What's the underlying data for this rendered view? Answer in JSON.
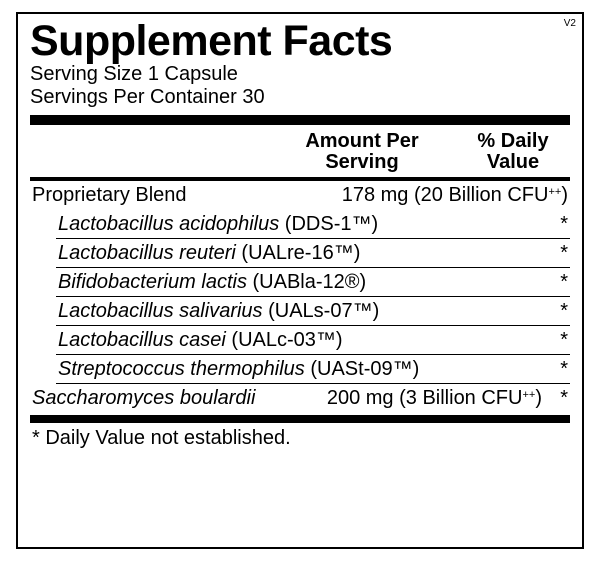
{
  "version": "V2",
  "title": "Supplement Facts",
  "serving_size": "Serving Size 1 Capsule",
  "servings_per_container": "Servings Per Container 30",
  "columns": {
    "amount_l1": "Amount Per",
    "amount_l2": "Serving",
    "dv_l1": "% Daily",
    "dv_l2": "Value"
  },
  "blend": {
    "name": "Proprietary Blend",
    "amount": "178 mg (20 Billion CFU",
    "amount_sup": "++",
    "amount_close": ")"
  },
  "ingredients": [
    {
      "italic": "Lactobacillus acidophilus",
      "tag": " (DDS-1™)",
      "dv": "*"
    },
    {
      "italic": "Lactobacillus reuteri",
      "tag": " (UALre-16™)",
      "dv": "*"
    },
    {
      "italic": "Bifidobacterium lactis",
      "tag": " (UABla-12®)",
      "dv": "*"
    },
    {
      "italic": "Lactobacillus salivarius",
      "tag": " (UALs-07™)",
      "dv": "*"
    },
    {
      "italic": "Lactobacillus casei",
      "tag": " (UALc-03™)",
      "dv": "*"
    },
    {
      "italic": "Streptococcus thermophilus",
      "tag": " (UASt-09™)",
      "dv": "*"
    }
  ],
  "sacch": {
    "italic": "Saccharomyces boulardii",
    "amount": "200 mg (3 Billion CFU",
    "amount_sup": "++",
    "amount_close": ")",
    "dv": "*"
  },
  "footnote": "* Daily Value not established."
}
